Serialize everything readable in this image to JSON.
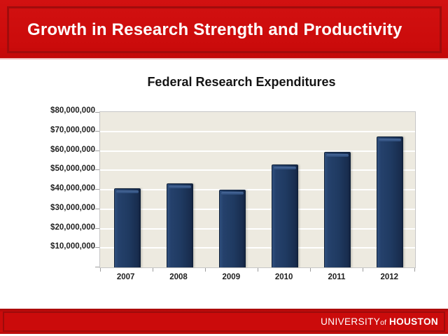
{
  "slide": {
    "title": "Growth in Research Strength and Productivity"
  },
  "footer": {
    "university": "UNIVERSITY",
    "of": "of",
    "houston": "HOUSTON"
  },
  "colors": {
    "banner_red": "#cb0b0b",
    "banner_border_red": "#9e0b0b",
    "bar_navy": "#1f3a61",
    "bar_outline": "#0e1f38",
    "plot_background": "#edeae0",
    "gridline_white": "#ffffff",
    "axis_gray": "#9d9d9d",
    "text_dark": "#1f1f1f"
  },
  "chart_data": {
    "type": "bar",
    "title": "Federal Research Expenditures",
    "categories": [
      "2007",
      "2008",
      "2009",
      "2010",
      "2011",
      "2012"
    ],
    "values": [
      40200000,
      43000000,
      39800000,
      52500000,
      59200000,
      67000000
    ],
    "xlabel": "",
    "ylabel": "",
    "ylim": [
      0,
      80000000
    ],
    "ytick_step": 10000000,
    "ytick_labels": [
      "$10,000,000",
      "$20,000,000",
      "$30,000,000",
      "$40,000,000",
      "$50,000,000",
      "$60,000,000",
      "$70,000,000",
      "$80,000,000"
    ],
    "grid": true,
    "legend": false
  }
}
